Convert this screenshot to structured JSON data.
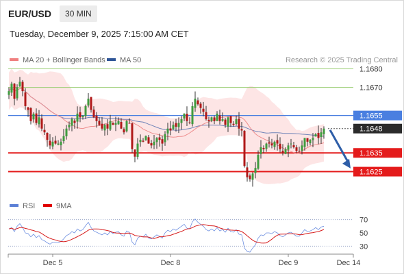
{
  "header": {
    "symbol": "EUR/USD",
    "timeframe": "30 MIN"
  },
  "datetime": "Tuesday, December 9, 2025 7:15:00 AM CET",
  "legend": {
    "ma20": {
      "label": "MA 20 + Bollinger Bands",
      "color": "#f08080"
    },
    "ma50": {
      "label": "MA 50",
      "color": "#2f5597"
    }
  },
  "credit": "Research © 2025 Trading Central",
  "chart_data": [
    {
      "type": "candlestick",
      "title": "",
      "ylim": [
        1.1608,
        1.169
      ],
      "x_labels": [
        {
          "label": "Dec 5",
          "index": 16
        },
        {
          "label": "Dec 8",
          "index": 59
        },
        {
          "label": "Dec 9",
          "index": 102
        },
        {
          "label": "Dec 14",
          "index": 124
        }
      ],
      "candles_count": 116,
      "key_levels": [
        {
          "price": 1.168,
          "label": "1.1680",
          "kind": "resistance-green"
        },
        {
          "price": 1.167,
          "label": "1.1670",
          "kind": "resistance-green"
        },
        {
          "price": 1.1655,
          "label": "1.1655",
          "kind": "pivot-blue"
        },
        {
          "price": 1.1648,
          "label": "1.1648",
          "kind": "last-price"
        },
        {
          "price": 1.1635,
          "label": "1.1635",
          "kind": "support-red"
        },
        {
          "price": 1.1625,
          "label": "1.1625",
          "kind": "support-red"
        }
      ],
      "forecast_arrow": {
        "from": 1.1648,
        "to": 1.1626
      },
      "close_path": [
        1.1668,
        1.1672,
        1.1664,
        1.167,
        1.1673,
        1.1668,
        1.166,
        1.1658,
        1.1652,
        1.1656,
        1.1651,
        1.1654,
        1.1648,
        1.1646,
        1.1642,
        1.1639,
        1.1641,
        1.164,
        1.164,
        1.1641,
        1.1644,
        1.1648,
        1.165,
        1.1653,
        1.1651,
        1.1656,
        1.1654,
        1.1655,
        1.166,
        1.1664,
        1.1658,
        1.1654,
        1.1652,
        1.165,
        1.1648,
        1.165,
        1.1648,
        1.1652,
        1.165,
        1.1651,
        1.1652,
        1.1648,
        1.1646,
        1.1652,
        1.1651,
        1.1637,
        1.1633,
        1.164,
        1.1642,
        1.1641,
        1.1644,
        1.164,
        1.1639,
        1.1641,
        1.1643,
        1.1642,
        1.164,
        1.1645,
        1.1648,
        1.1647,
        1.165,
        1.1649,
        1.1651,
        1.1653,
        1.1656,
        1.1652,
        1.1651,
        1.166,
        1.1664,
        1.1661,
        1.1659,
        1.1657,
        1.1653,
        1.1652,
        1.1654,
        1.1652,
        1.1656,
        1.1652,
        1.1653,
        1.165,
        1.1654,
        1.1651,
        1.165,
        1.1653,
        1.1648,
        1.1647,
        1.1628,
        1.1622,
        1.1621,
        1.1624,
        1.1627,
        1.1634,
        1.1638,
        1.1637,
        1.164,
        1.164,
        1.1639,
        1.1641,
        1.164,
        1.1637,
        1.1635,
        1.1637,
        1.1639,
        1.164,
        1.1638,
        1.1636,
        1.1636,
        1.1639,
        1.1643,
        1.1641,
        1.1642,
        1.1643,
        1.1645,
        1.1643,
        1.1646,
        1.1648
      ]
    },
    {
      "type": "line",
      "title": "",
      "legend": [
        {
          "name": "RSI",
          "color": "#5b7fd6"
        },
        {
          "name": "9MA",
          "color": "#e00000"
        }
      ],
      "ylim": [
        20,
        80
      ],
      "y_ticks": [
        70,
        50,
        30
      ],
      "rsi_path": [
        56,
        58,
        52,
        60,
        64,
        58,
        50,
        49,
        44,
        48,
        43,
        46,
        40,
        38,
        35,
        33,
        36,
        35,
        35,
        37,
        41,
        46,
        48,
        52,
        50,
        56,
        53,
        55,
        61,
        66,
        58,
        53,
        51,
        49,
        47,
        50,
        47,
        52,
        49,
        51,
        52,
        47,
        45,
        53,
        51,
        36,
        32,
        42,
        45,
        44,
        48,
        42,
        41,
        44,
        47,
        45,
        42,
        50,
        54,
        52,
        56,
        54,
        57,
        60,
        63,
        57,
        56,
        67,
        71,
        66,
        63,
        60,
        55,
        53,
        56,
        53,
        58,
        53,
        55,
        51,
        57,
        52,
        51,
        55,
        48,
        47,
        27,
        22,
        21,
        27,
        32,
        42,
        47,
        46,
        50,
        50,
        49,
        52,
        50,
        46,
        44,
        47,
        50,
        51,
        48,
        45,
        45,
        50,
        55,
        52,
        53,
        55,
        58,
        55,
        59,
        60
      ]
    }
  ]
}
